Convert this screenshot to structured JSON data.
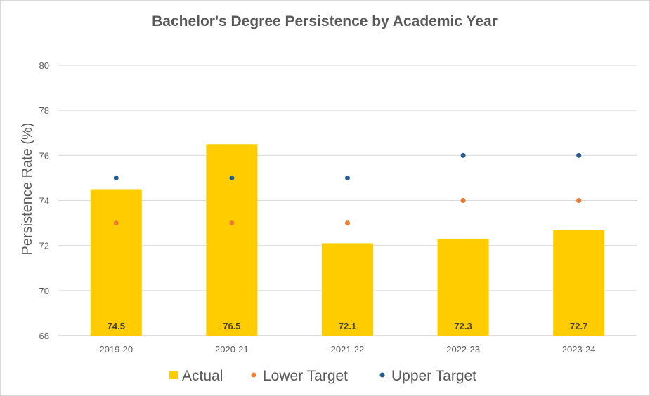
{
  "chart_data": {
    "type": "bar",
    "title": "Bachelor's Degree Persistence by Academic Year",
    "xlabel": "",
    "ylabel": "Persistence Rate (%)",
    "ylim": [
      68,
      80
    ],
    "yticks": [
      68,
      70,
      72,
      74,
      76,
      78,
      80
    ],
    "categories": [
      "2019-20",
      "2020-21",
      "2021-22",
      "2022-23",
      "2023-24"
    ],
    "series": [
      {
        "name": "Actual",
        "kind": "bar",
        "color": "#ffcc00",
        "values": [
          74.5,
          76.5,
          72.1,
          72.3,
          72.7
        ],
        "labels": [
          "74.5",
          "76.5",
          "72.1",
          "72.3",
          "72.7"
        ]
      },
      {
        "name": "Lower Target",
        "kind": "scatter",
        "color": "#ed7d31",
        "values": [
          73,
          73,
          73,
          74,
          74
        ]
      },
      {
        "name": "Upper Target",
        "kind": "scatter",
        "color": "#255e91",
        "values": [
          75,
          75,
          75,
          76,
          76
        ]
      }
    ],
    "grid": true,
    "legend": "bottom"
  }
}
